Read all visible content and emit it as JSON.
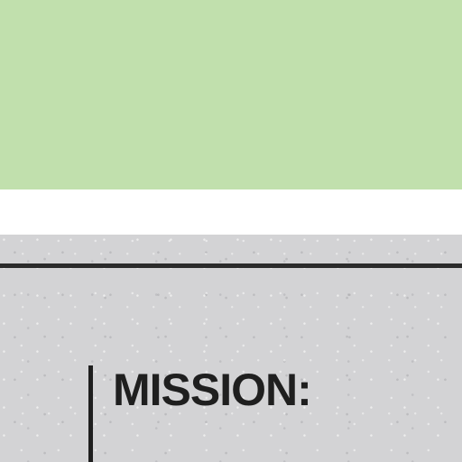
{
  "colors": {
    "green_panel": "#c1e0ad",
    "stone_panel": "#d3d3d5",
    "ink": "#1f1f1f"
  },
  "document": {
    "section_label": "MISSION:"
  }
}
